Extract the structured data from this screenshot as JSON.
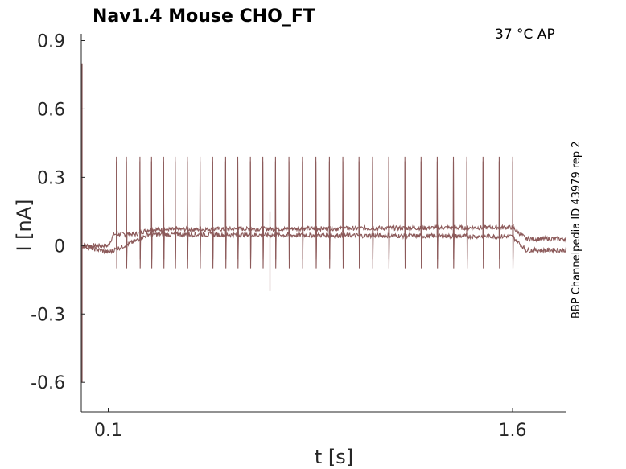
{
  "chart_data": {
    "type": "line",
    "title": "Nav1.4  Mouse  CHO_FT",
    "xlabel": "t [s]",
    "ylabel": "I [nA]",
    "xlim": [
      0.0,
      1.8
    ],
    "ylim": [
      -0.73,
      0.93
    ],
    "xticks": [
      0.1,
      1.6
    ],
    "xtick_labels": [
      "0.1",
      "1.6"
    ],
    "yticks": [
      0.9,
      0.6,
      0.3,
      0,
      -0.3,
      -0.6
    ],
    "ytick_labels": [
      "0.9",
      "0.6",
      "0.3",
      "0",
      "-0.3",
      "-0.6"
    ],
    "annotation": "37 °C  AP",
    "side_label": "BBP Channelpedia ID 43979 rep 2",
    "grid": false,
    "line_color": "#8c5a5a",
    "series": [
      {
        "baseline": [
          [
            0.0,
            0.0
          ],
          [
            0.1,
            0.0
          ],
          [
            0.12,
            0.05
          ],
          [
            0.2,
            0.05
          ],
          [
            0.25,
            0.07
          ],
          [
            1.6,
            0.08
          ],
          [
            1.65,
            0.03
          ],
          [
            1.8,
            0.03
          ]
        ],
        "spike_x": [
          0.13,
          0.167,
          0.217,
          0.26,
          0.305,
          0.348,
          0.393,
          0.44,
          0.487,
          0.535,
          0.58,
          0.627,
          0.673,
          0.72,
          0.77,
          0.82,
          0.87,
          0.92,
          0.97,
          1.03,
          1.08,
          1.14,
          1.2,
          1.26,
          1.32,
          1.38,
          1.43,
          1.49,
          1.55,
          1.6
        ],
        "spike_peak": 0.39,
        "spike_trough": -0.06
      },
      {
        "baseline": [
          [
            0.0,
            0.0
          ],
          [
            0.1,
            -0.03
          ],
          [
            0.2,
            0.02
          ],
          [
            0.25,
            0.05
          ],
          [
            1.6,
            0.04
          ],
          [
            1.65,
            -0.02
          ],
          [
            1.8,
            -0.02
          ]
        ],
        "spike_x": [
          0.13,
          0.167,
          0.217,
          0.26,
          0.305,
          0.348,
          0.393,
          0.44,
          0.487,
          0.535,
          0.58,
          0.627,
          0.673,
          0.72,
          0.77,
          0.82,
          0.87,
          0.92,
          0.97,
          1.03,
          1.08,
          1.14,
          1.2,
          1.26,
          1.32,
          1.38,
          1.43,
          1.49,
          1.55,
          1.6
        ],
        "spike_peak": 0.37,
        "spike_trough": -0.1
      }
    ],
    "artifacts": [
      {
        "x": 0.0,
        "y_min": -0.6,
        "y_max": 0.8
      },
      {
        "x": 0.7,
        "y_min": -0.2,
        "y_max": 0.15
      }
    ]
  }
}
